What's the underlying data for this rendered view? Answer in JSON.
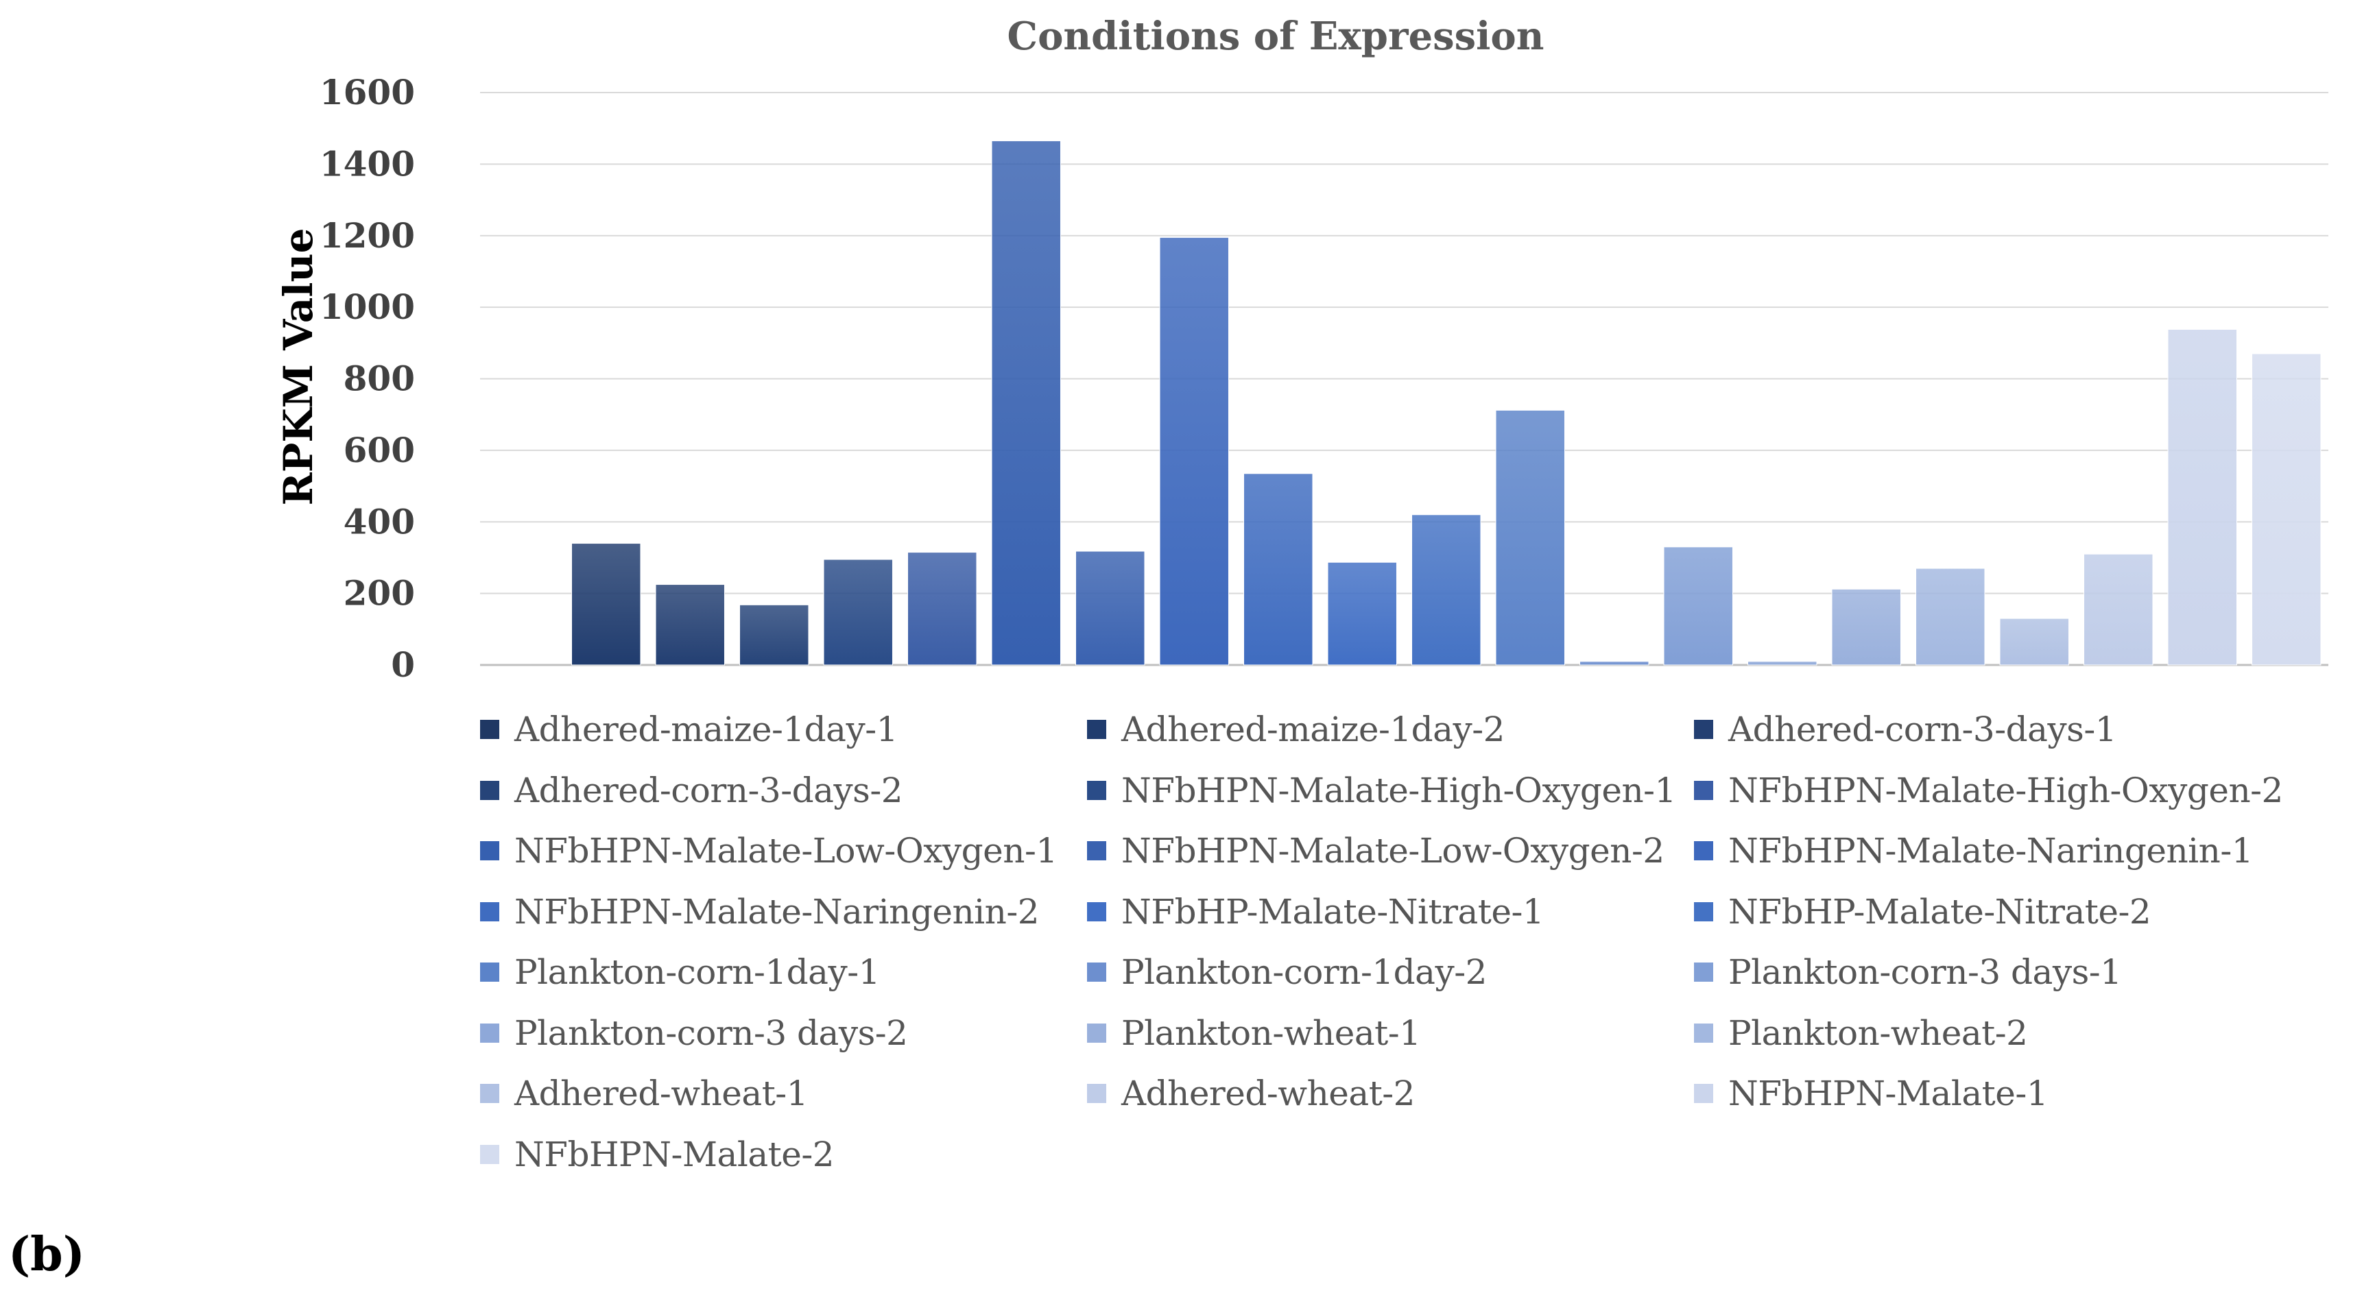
{
  "panel_label": "(b)",
  "chart_data": {
    "type": "bar",
    "title": "Conditions of Expression",
    "xlabel": "",
    "ylabel": "RPKM Value",
    "ylim": [
      0,
      1600
    ],
    "yticks": [
      0,
      200,
      400,
      600,
      800,
      1000,
      1200,
      1400,
      1600
    ],
    "grid": true,
    "legend_position": "bottom",
    "categories": [
      "Adhered-maize-1day-1",
      "Adhered-maize-1day-2",
      "Adhered-corn-3-days-1",
      "Adhered-corn-3-days-2",
      "NFbHPN-Malate-High-Oxygen-1",
      "NFbHPN-Malate-High-Oxygen-2",
      "NFbHPN-Malate-Low-Oxygen-1",
      "NFbHPN-Malate-Low-Oxygen-2",
      "NFbHPN-Malate-Naringenin-1",
      "NFbHPN-Malate-Naringenin-2",
      "NFbHP-Malate-Nitrate-1",
      "NFbHP-Malate-Nitrate-2",
      "Plankton-corn-1day-1",
      "Plankton-corn-1day-2",
      "Plankton-corn-3 days-1",
      "Plankton-corn-3 days-2",
      "Plankton-wheat-1",
      "Plankton-wheat-2",
      "Adhered-wheat-1",
      "Adhered-wheat-2",
      "NFbHPN-Malate-1",
      "NFbHPN-Malate-2"
    ],
    "values": [
      0,
      340,
      225,
      168,
      295,
      315,
      1465,
      318,
      1195,
      535,
      287,
      420,
      712,
      10,
      330,
      10,
      212,
      270,
      130,
      310,
      938,
      870
    ],
    "colors": [
      "#1f3864",
      "#203c6e",
      "#233f72",
      "#264479",
      "#2a4c88",
      "#3a5da6",
      "#3660b0",
      "#3a62b0",
      "#3d68bd",
      "#3f6cc0",
      "#416fc5",
      "#4472c4",
      "#5b83c9",
      "#6d8fcf",
      "#819fd6",
      "#8ea8d9",
      "#99b0dc",
      "#a3b8e0",
      "#b0c1e3",
      "#bfcce8",
      "#cbd5ec",
      "#d4dcef"
    ]
  }
}
